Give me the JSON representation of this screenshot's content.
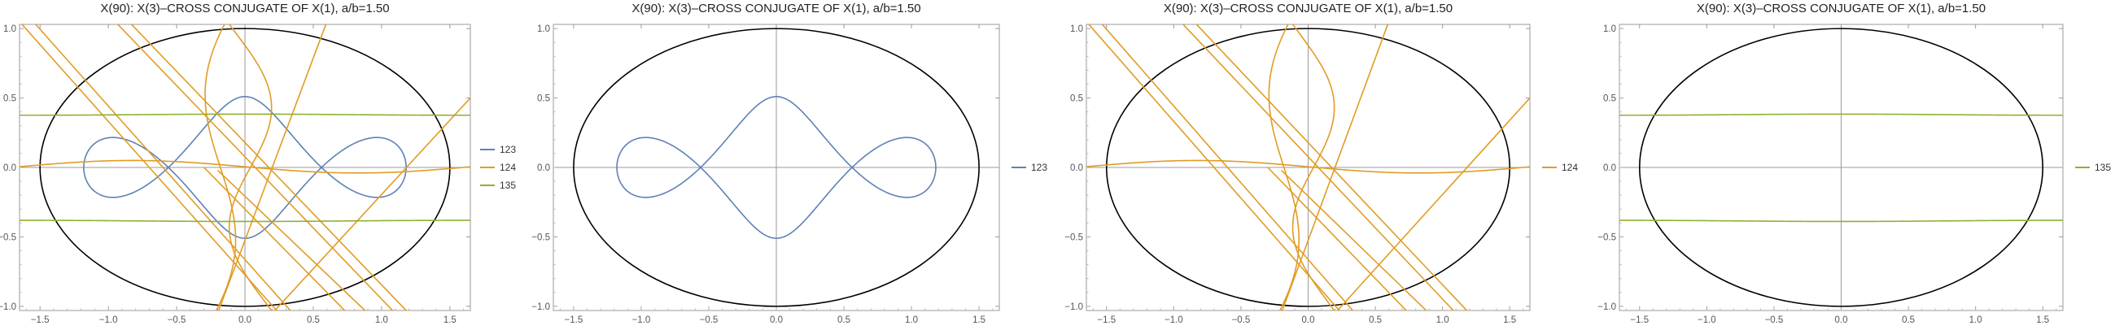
{
  "chart_data": [
    {
      "type": "line",
      "title": "X(90): X(3)–CROSS CONJUGATE OF X(1), a/b=1.50",
      "xlim": [
        -1.65,
        1.65
      ],
      "ylim": [
        -1.03,
        1.03
      ],
      "xticks": [
        -1.5,
        -1.0,
        -0.5,
        0.0,
        0.5,
        1.0,
        1.5
      ],
      "xtick_labels": [
        "−1.5",
        "−1.0",
        "−0.5",
        "0.0",
        "0.5",
        "1.0",
        "1.5"
      ],
      "yticks": [
        -1.0,
        -0.5,
        0.0,
        0.5,
        1.0
      ],
      "ytick_labels": [
        "−1.0",
        "−0.5",
        "0.0",
        "0.5",
        "1.0"
      ],
      "ellipse": {
        "a": 1.5,
        "b": 1.0,
        "color": "#000000"
      },
      "legend": "right",
      "series": [
        {
          "name": "123",
          "color": "#5e81b5"
        },
        {
          "name": "124",
          "color": "#e19c24"
        },
        {
          "name": "135",
          "color": "#8fb032"
        }
      ]
    },
    {
      "type": "line",
      "title": "X(90): X(3)–CROSS CONJUGATE OF X(1), a/b=1.50",
      "xlim": [
        -1.65,
        1.65
      ],
      "ylim": [
        -1.03,
        1.03
      ],
      "xticks": [
        -1.5,
        -1.0,
        -0.5,
        0.0,
        0.5,
        1.0,
        1.5
      ],
      "xtick_labels": [
        "−1.5",
        "−1.0",
        "−0.5",
        "0.0",
        "0.5",
        "1.0",
        "1.5"
      ],
      "yticks": [
        -1.0,
        -0.5,
        0.0,
        0.5,
        1.0
      ],
      "ytick_labels": [
        "−1.0",
        "−0.5",
        "0.0",
        "0.5",
        "1.0"
      ],
      "ellipse": {
        "a": 1.5,
        "b": 1.0,
        "color": "#000000"
      },
      "legend": "right",
      "series": [
        {
          "name": "123",
          "color": "#5e81b5"
        }
      ]
    },
    {
      "type": "line",
      "title": "X(90): X(3)–CROSS CONJUGATE OF X(1), a/b=1.50",
      "xlim": [
        -1.65,
        1.65
      ],
      "ylim": [
        -1.03,
        1.03
      ],
      "xticks": [
        -1.5,
        -1.0,
        -0.5,
        0.0,
        0.5,
        1.0,
        1.5
      ],
      "xtick_labels": [
        "−1.5",
        "−1.0",
        "−0.5",
        "0.0",
        "0.5",
        "1.0",
        "1.5"
      ],
      "yticks": [
        -1.0,
        -0.5,
        0.0,
        0.5,
        1.0
      ],
      "ytick_labels": [
        "−1.0",
        "−0.5",
        "0.0",
        "0.5",
        "1.0"
      ],
      "ellipse": {
        "a": 1.5,
        "b": 1.0,
        "color": "#000000"
      },
      "legend": "right",
      "series": [
        {
          "name": "124",
          "color": "#e19c24"
        }
      ]
    },
    {
      "type": "line",
      "title": "X(90): X(3)–CROSS CONJUGATE OF X(1), a/b=1.50",
      "xlim": [
        -1.65,
        1.65
      ],
      "ylim": [
        -1.03,
        1.03
      ],
      "xticks": [
        -1.5,
        -1.0,
        -0.5,
        0.0,
        0.5,
        1.0,
        1.5
      ],
      "xtick_labels": [
        "−1.5",
        "−1.0",
        "−0.5",
        "0.0",
        "0.5",
        "1.0",
        "1.5"
      ],
      "yticks": [
        -1.0,
        -0.5,
        0.0,
        0.5,
        1.0
      ],
      "ytick_labels": [
        "−1.0",
        "−0.5",
        "0.0",
        "0.5",
        "1.0"
      ],
      "ellipse": {
        "a": 1.5,
        "b": 1.0,
        "color": "#000000"
      },
      "legend": "right",
      "series": [
        {
          "name": "135",
          "color": "#8fb032"
        }
      ]
    }
  ]
}
